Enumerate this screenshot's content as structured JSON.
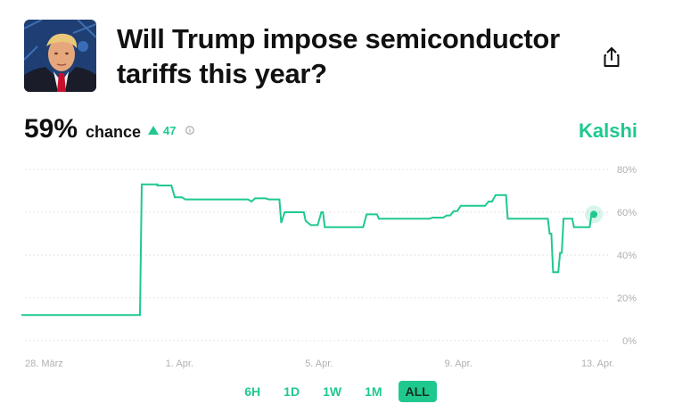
{
  "market": {
    "title_line1": "Will Trump impose semiconductor",
    "title_line2": "tariffs this year?",
    "probability": "59%",
    "chance_label": "chance",
    "delta": "47",
    "brand": "Kalshi"
  },
  "icons": {
    "share": "share-icon",
    "info": "info-icon",
    "delta": "triangle-up-icon"
  },
  "colors": {
    "accent": "#1fc98d",
    "grid": "#d9d9d9",
    "axis_text": "#b0b0b0"
  },
  "time_ranges": [
    {
      "label": "6H",
      "active": false
    },
    {
      "label": "1D",
      "active": false
    },
    {
      "label": "1W",
      "active": false
    },
    {
      "label": "1M",
      "active": false
    },
    {
      "label": "ALL",
      "active": true
    }
  ],
  "chart_data": {
    "type": "line",
    "title": "",
    "xlabel": "",
    "ylabel": "",
    "ylim": [
      0,
      80
    ],
    "y_ticks": [
      0,
      20,
      40,
      60,
      80
    ],
    "y_tick_labels": [
      "0%",
      "20%",
      "40%",
      "60%",
      "80%"
    ],
    "x_tick_labels": [
      "28. März",
      "1. Apr.",
      "5. Apr.",
      "9. Apr.",
      "13. Apr."
    ],
    "x_ticks_days": [
      0,
      4,
      8,
      12,
      16
    ],
    "grid": true,
    "legend": "none",
    "series": [
      {
        "values_note_units": "percent",
        "points": [
          [
            -0.1,
            12
          ],
          [
            3.3,
            12
          ],
          [
            3.35,
            73
          ],
          [
            3.8,
            73
          ],
          [
            3.8,
            72.5
          ],
          [
            4.2,
            72.5
          ],
          [
            4.3,
            67
          ],
          [
            4.5,
            67
          ],
          [
            4.6,
            66
          ],
          [
            6.4,
            66
          ],
          [
            6.5,
            65
          ],
          [
            6.6,
            66.5
          ],
          [
            6.9,
            66.5
          ],
          [
            7.0,
            66
          ],
          [
            7.3,
            66
          ],
          [
            7.35,
            55
          ],
          [
            7.45,
            60
          ],
          [
            8.0,
            60
          ],
          [
            8.05,
            56
          ],
          [
            8.2,
            54
          ],
          [
            8.4,
            54
          ],
          [
            8.5,
            60
          ],
          [
            8.55,
            60
          ],
          [
            8.6,
            53
          ],
          [
            9.7,
            53
          ],
          [
            9.8,
            59
          ],
          [
            10.1,
            59
          ],
          [
            10.15,
            57
          ],
          [
            11.6,
            57
          ],
          [
            11.7,
            57.5
          ],
          [
            12.0,
            57.5
          ],
          [
            12.1,
            58.5
          ],
          [
            12.2,
            58.5
          ],
          [
            12.3,
            60.5
          ],
          [
            12.4,
            60.5
          ],
          [
            12.5,
            63
          ],
          [
            13.2,
            63
          ],
          [
            13.3,
            65
          ],
          [
            13.4,
            65
          ],
          [
            13.5,
            68
          ],
          [
            13.8,
            68
          ],
          [
            13.85,
            57
          ],
          [
            15.0,
            57
          ],
          [
            15.05,
            50
          ],
          [
            15.1,
            50
          ],
          [
            15.15,
            32
          ],
          [
            15.3,
            32
          ],
          [
            15.35,
            41
          ],
          [
            15.4,
            41
          ],
          [
            15.45,
            57
          ],
          [
            15.7,
            57
          ],
          [
            15.75,
            53
          ],
          [
            16.2,
            53
          ],
          [
            16.25,
            59
          ],
          [
            16.32,
            59
          ]
        ]
      }
    ]
  }
}
